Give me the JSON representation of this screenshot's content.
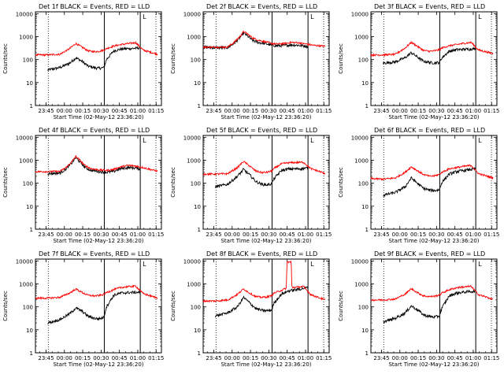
{
  "page": {
    "layout": "3x3 grid of detector count-rate plots"
  },
  "colors": {
    "events": "#000000",
    "lld": "#ff0000",
    "background": "#ffffff",
    "axes": "#000000"
  },
  "common": {
    "xlabel": "Start Time (02-May-12 23:36:20)",
    "ylabel": "Counts/sec",
    "x_tick_labels": [
      "23:45",
      "00:00",
      "00:15",
      "00:30",
      "00:45",
      "01:00",
      "01:15"
    ],
    "x_tick_minutes": [
      8.67,
      23.67,
      38.67,
      53.67,
      68.67,
      83.67,
      98.67
    ],
    "xlim_minutes": [
      0,
      103
    ],
    "y_tick_labels": [
      "1",
      "10",
      "100",
      "1000",
      "10000"
    ],
    "y_tick_values": [
      1,
      10,
      100,
      1000,
      10000
    ],
    "ylim": [
      1,
      12000
    ],
    "yscale": "log",
    "vertical_markers": [
      {
        "style": "dotted",
        "minute": 10.5
      },
      {
        "style": "solid",
        "minute": 56.3
      },
      {
        "style": "solid",
        "minute": 85.7
      },
      {
        "style": "dotted",
        "minute": 98.5
      }
    ],
    "corner_marker": "L"
  },
  "chart_data": [
    {
      "type": "line",
      "title": "Det 1f BLACK = Events, RED = LLD",
      "series": [
        {
          "name": "Events",
          "color": "#000000",
          "x": [
            10,
            20,
            28,
            33,
            38,
            43,
            48,
            52,
            56,
            58,
            64,
            70,
            76,
            82,
            85.7
          ],
          "y": [
            35,
            45,
            70,
            120,
            85,
            52,
            45,
            42,
            45,
            100,
            240,
            290,
            300,
            310,
            330
          ]
        },
        {
          "name": "LLD",
          "color": "#ff0000",
          "x": [
            0,
            10,
            20,
            28,
            33,
            38,
            43,
            48,
            52,
            56,
            58,
            64,
            70,
            76,
            82,
            88,
            94,
            100
          ],
          "y": [
            160,
            160,
            170,
            300,
            500,
            350,
            240,
            220,
            230,
            260,
            300,
            390,
            450,
            500,
            550,
            260,
            210,
            170
          ]
        }
      ]
    },
    {
      "type": "line",
      "title": "Det 2f BLACK = Events, RED = LLD",
      "series": [
        {
          "name": "Events",
          "color": "#000000",
          "x": [
            0,
            10,
            20,
            25,
            30,
            33,
            36,
            40,
            45,
            52,
            56,
            60,
            66,
            72,
            78,
            85.7
          ],
          "y": [
            340,
            330,
            330,
            500,
            900,
            1450,
            1100,
            700,
            560,
            480,
            420,
            400,
            410,
            440,
            420,
            380
          ]
        },
        {
          "name": "LLD",
          "color": "#ff0000",
          "x": [
            0,
            10,
            20,
            25,
            30,
            33,
            36,
            40,
            45,
            52,
            56,
            60,
            66,
            72,
            78,
            84,
            90,
            100
          ],
          "y": [
            350,
            350,
            350,
            550,
            1000,
            1650,
            1350,
            900,
            700,
            580,
            500,
            480,
            500,
            560,
            540,
            480,
            420,
            380
          ]
        }
      ]
    },
    {
      "type": "line",
      "title": "Det 3f BLACK = Events, RED = LLD",
      "series": [
        {
          "name": "Events",
          "color": "#000000",
          "x": [
            10,
            20,
            28,
            33,
            38,
            43,
            48,
            52,
            56,
            58,
            64,
            70,
            76,
            82,
            85.7
          ],
          "y": [
            70,
            80,
            120,
            200,
            130,
            85,
            75,
            72,
            75,
            120,
            230,
            270,
            280,
            290,
            300
          ]
        },
        {
          "name": "LLD",
          "color": "#ff0000",
          "x": [
            0,
            10,
            20,
            28,
            33,
            38,
            43,
            48,
            52,
            56,
            58,
            64,
            70,
            76,
            82,
            88,
            94,
            100
          ],
          "y": [
            160,
            160,
            170,
            320,
            560,
            380,
            250,
            230,
            240,
            270,
            320,
            400,
            450,
            510,
            560,
            260,
            220,
            180
          ]
        }
      ]
    },
    {
      "type": "line",
      "title": "Det 4f BLACK = Events, RED = LLD",
      "series": [
        {
          "name": "Events",
          "color": "#000000",
          "x": [
            10,
            20,
            25,
            30,
            33,
            36,
            40,
            45,
            52,
            58,
            64,
            70,
            76,
            82,
            85.7
          ],
          "y": [
            260,
            280,
            420,
            800,
            1300,
            900,
            520,
            370,
            320,
            300,
            330,
            440,
            480,
            460,
            430
          ]
        },
        {
          "name": "LLD",
          "color": "#ff0000",
          "x": [
            0,
            10,
            20,
            25,
            30,
            33,
            36,
            40,
            45,
            52,
            58,
            64,
            70,
            76,
            82,
            88,
            94,
            100
          ],
          "y": [
            320,
            320,
            330,
            480,
            900,
            1500,
            1050,
            620,
            440,
            380,
            360,
            400,
            520,
            600,
            560,
            480,
            400,
            330
          ]
        }
      ]
    },
    {
      "type": "line",
      "title": "Det 5f BLACK = Events, RED = LLD",
      "series": [
        {
          "name": "Events",
          "color": "#000000",
          "x": [
            10,
            20,
            28,
            33,
            38,
            43,
            48,
            52,
            56,
            58,
            64,
            70,
            76,
            82,
            85.7
          ],
          "y": [
            70,
            90,
            200,
            400,
            230,
            120,
            90,
            85,
            95,
            160,
            360,
            420,
            420,
            440,
            460
          ]
        },
        {
          "name": "LLD",
          "color": "#ff0000",
          "x": [
            0,
            10,
            20,
            28,
            33,
            38,
            43,
            48,
            52,
            56,
            58,
            64,
            70,
            76,
            82,
            88,
            94,
            100
          ],
          "y": [
            250,
            250,
            260,
            480,
            900,
            560,
            340,
            290,
            300,
            340,
            440,
            700,
            780,
            800,
            820,
            430,
            340,
            260
          ]
        }
      ]
    },
    {
      "type": "line",
      "title": "Det 6f BLACK = Events, RED = LLD",
      "series": [
        {
          "name": "Events",
          "color": "#000000",
          "x": [
            10,
            20,
            28,
            33,
            38,
            43,
            48,
            52,
            56,
            58,
            64,
            70,
            76,
            82,
            85.7
          ],
          "y": [
            30,
            40,
            70,
            170,
            100,
            60,
            50,
            48,
            52,
            110,
            250,
            320,
            360,
            400,
            420
          ]
        },
        {
          "name": "LLD",
          "color": "#ff0000",
          "x": [
            0,
            10,
            20,
            28,
            33,
            38,
            43,
            48,
            52,
            56,
            58,
            64,
            70,
            76,
            82,
            88,
            94,
            100
          ],
          "y": [
            160,
            150,
            170,
            300,
            520,
            350,
            240,
            200,
            210,
            240,
            300,
            420,
            480,
            540,
            600,
            260,
            210,
            170
          ]
        }
      ]
    },
    {
      "type": "line",
      "title": "Det 7f BLACK = Events, RED = LLD",
      "series": [
        {
          "name": "Events",
          "color": "#000000",
          "x": [
            10,
            20,
            28,
            33,
            38,
            43,
            48,
            52,
            56,
            58,
            64,
            70,
            76,
            82,
            85.7
          ],
          "y": [
            20,
            28,
            50,
            90,
            65,
            40,
            32,
            30,
            35,
            100,
            320,
            400,
            420,
            430,
            440
          ]
        },
        {
          "name": "LLD",
          "color": "#ff0000",
          "x": [
            0,
            10,
            20,
            28,
            33,
            38,
            43,
            48,
            52,
            56,
            58,
            64,
            70,
            76,
            82,
            88,
            94,
            100
          ],
          "y": [
            240,
            240,
            260,
            400,
            600,
            430,
            320,
            300,
            310,
            350,
            420,
            560,
            700,
            760,
            800,
            380,
            300,
            240
          ]
        }
      ]
    },
    {
      "type": "line",
      "title": "Det 8f BLACK = Events, RED = LLD",
      "series": [
        {
          "name": "Events",
          "color": "#000000",
          "x": [
            10,
            20,
            28,
            33,
            38,
            43,
            48,
            52,
            56,
            58,
            64,
            70,
            76,
            82,
            85.7
          ],
          "y": [
            40,
            55,
            100,
            260,
            150,
            85,
            70,
            68,
            72,
            150,
            360,
            500,
            560,
            640,
            700
          ]
        },
        {
          "name": "LLD",
          "color": "#ff0000",
          "x": [
            0,
            10,
            20,
            28,
            33,
            38,
            43,
            48,
            52,
            56,
            58,
            64,
            68,
            68.5,
            72,
            72.5,
            76,
            82,
            88,
            94,
            100
          ],
          "y": [
            180,
            180,
            200,
            350,
            600,
            400,
            280,
            260,
            270,
            310,
            400,
            520,
            650,
            9000,
            9000,
            700,
            720,
            760,
            340,
            260,
            200
          ]
        }
      ]
    },
    {
      "type": "line",
      "title": "Det 9f BLACK = Events, RED = LLD",
      "series": [
        {
          "name": "Events",
          "color": "#000000",
          "x": [
            10,
            20,
            28,
            33,
            38,
            43,
            48,
            52,
            56,
            58,
            64,
            70,
            76,
            82,
            85.7
          ],
          "y": [
            22,
            32,
            55,
            110,
            75,
            45,
            38,
            36,
            40,
            90,
            300,
            400,
            440,
            470,
            480
          ]
        },
        {
          "name": "LLD",
          "color": "#ff0000",
          "x": [
            0,
            10,
            20,
            28,
            33,
            38,
            43,
            48,
            52,
            56,
            58,
            64,
            70,
            76,
            82,
            88,
            94,
            100
          ],
          "y": [
            200,
            200,
            220,
            360,
            620,
            420,
            300,
            280,
            290,
            330,
            400,
            560,
            680,
            740,
            780,
            340,
            270,
            210
          ]
        }
      ]
    }
  ]
}
